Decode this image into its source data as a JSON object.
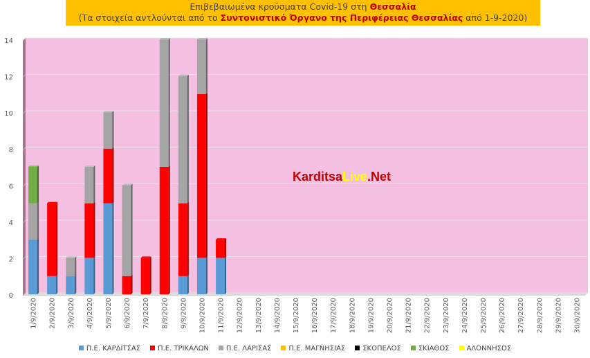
{
  "title": {
    "line1_prefix": "Επιβεβαιωμένα κρούσματα Covid-19 στη ",
    "line1_highlight": "Θεσσαλία",
    "line2_prefix": "(Τα στοιχεία αντλούνται από το ",
    "line2_highlight": "Συντονιστικό Όργανο της Περιφέρειας Θεσσαλίας",
    "line2_suffix": " από 1-9-2020)"
  },
  "watermark": {
    "part1": "Karditsa",
    "part2": "Live",
    "part3": ".Net"
  },
  "chart_data": {
    "type": "bar",
    "stacked": true,
    "categories": [
      "1/9/2020",
      "2/9/2020",
      "3/9/2020",
      "4/9/2020",
      "5/9/2020",
      "6/9/2020",
      "7/9/2020",
      "8/9/2020",
      "9/9/2020",
      "10/9/2020",
      "11/9/2020",
      "12/9/2020",
      "13/9/2020",
      "14/9/2020",
      "15/9/2020",
      "16/9/2020",
      "17/9/2020",
      "18/9/2020",
      "19/9/2020",
      "20/9/2020",
      "21/9/2020",
      "22/9/2020",
      "23/9/2020",
      "24/9/2020",
      "25/9/2020",
      "26/9/2020",
      "27/9/2020",
      "28/9/2020",
      "29/9/2020",
      "30/9/2020"
    ],
    "series": [
      {
        "name": "Π.Ε. ΚΑΡΔΙΤΣΑΣ",
        "color": "#5b9bd5",
        "values": [
          3,
          1,
          1,
          2,
          5,
          0,
          0,
          0,
          1,
          2,
          2,
          0,
          0,
          0,
          0,
          0,
          0,
          0,
          0,
          0,
          0,
          0,
          0,
          0,
          0,
          0,
          0,
          0,
          0,
          0
        ]
      },
      {
        "name": "Π.Ε. ΤΡΙΚΑΛΩΝ",
        "color": "#ff0000",
        "values": [
          0,
          4,
          0,
          3,
          3,
          1,
          2,
          7,
          4,
          9,
          1,
          0,
          0,
          0,
          0,
          0,
          0,
          0,
          0,
          0,
          0,
          0,
          0,
          0,
          0,
          0,
          0,
          0,
          0,
          0
        ]
      },
      {
        "name": "Π.Ε. ΛΑΡΙΣΑΣ",
        "color": "#a5a5a5",
        "values": [
          2,
          0,
          1,
          2,
          2,
          5,
          0,
          7,
          7,
          3,
          0,
          0,
          0,
          0,
          0,
          0,
          0,
          0,
          0,
          0,
          0,
          0,
          0,
          0,
          0,
          0,
          0,
          0,
          0,
          0
        ]
      },
      {
        "name": "Π.Ε. ΜΑΓΝΗΣΙΑΣ",
        "color": "#ffc000",
        "values": [
          0,
          0,
          0,
          0,
          0,
          0,
          0,
          0,
          0,
          0,
          0,
          0,
          0,
          0,
          0,
          0,
          0,
          0,
          0,
          0,
          0,
          0,
          0,
          0,
          0,
          0,
          0,
          0,
          0,
          0
        ]
      },
      {
        "name": "ΣΚΟΠΕΛΟΣ",
        "color": "#000000",
        "values": [
          0,
          0,
          0,
          0,
          0,
          0,
          0,
          0,
          0,
          0,
          0,
          0,
          0,
          0,
          0,
          0,
          0,
          0,
          0,
          0,
          0,
          0,
          0,
          0,
          0,
          0,
          0,
          0,
          0,
          0
        ]
      },
      {
        "name": "ΣΚΙΑΘΟΣ",
        "color": "#70ad47",
        "values": [
          2,
          0,
          0,
          0,
          0,
          0,
          0,
          0,
          0,
          0,
          0,
          0,
          0,
          0,
          0,
          0,
          0,
          0,
          0,
          0,
          0,
          0,
          0,
          0,
          0,
          0,
          0,
          0,
          0,
          0
        ]
      },
      {
        "name": "ΑΛΟΝΝΗΣΟΣ",
        "color": "#ffff00",
        "values": [
          0,
          0,
          0,
          0,
          0,
          0,
          0,
          0,
          0,
          0,
          0,
          0,
          0,
          0,
          0,
          0,
          0,
          0,
          0,
          0,
          0,
          0,
          0,
          0,
          0,
          0,
          0,
          0,
          0,
          0
        ]
      }
    ],
    "ylim": [
      0,
      14
    ],
    "yticks": [
      0,
      2,
      4,
      6,
      8,
      10,
      12,
      14
    ],
    "grid": true,
    "legend_position": "bottom",
    "plot_background": "#f4bfe0",
    "wall_color": "#a87490"
  }
}
